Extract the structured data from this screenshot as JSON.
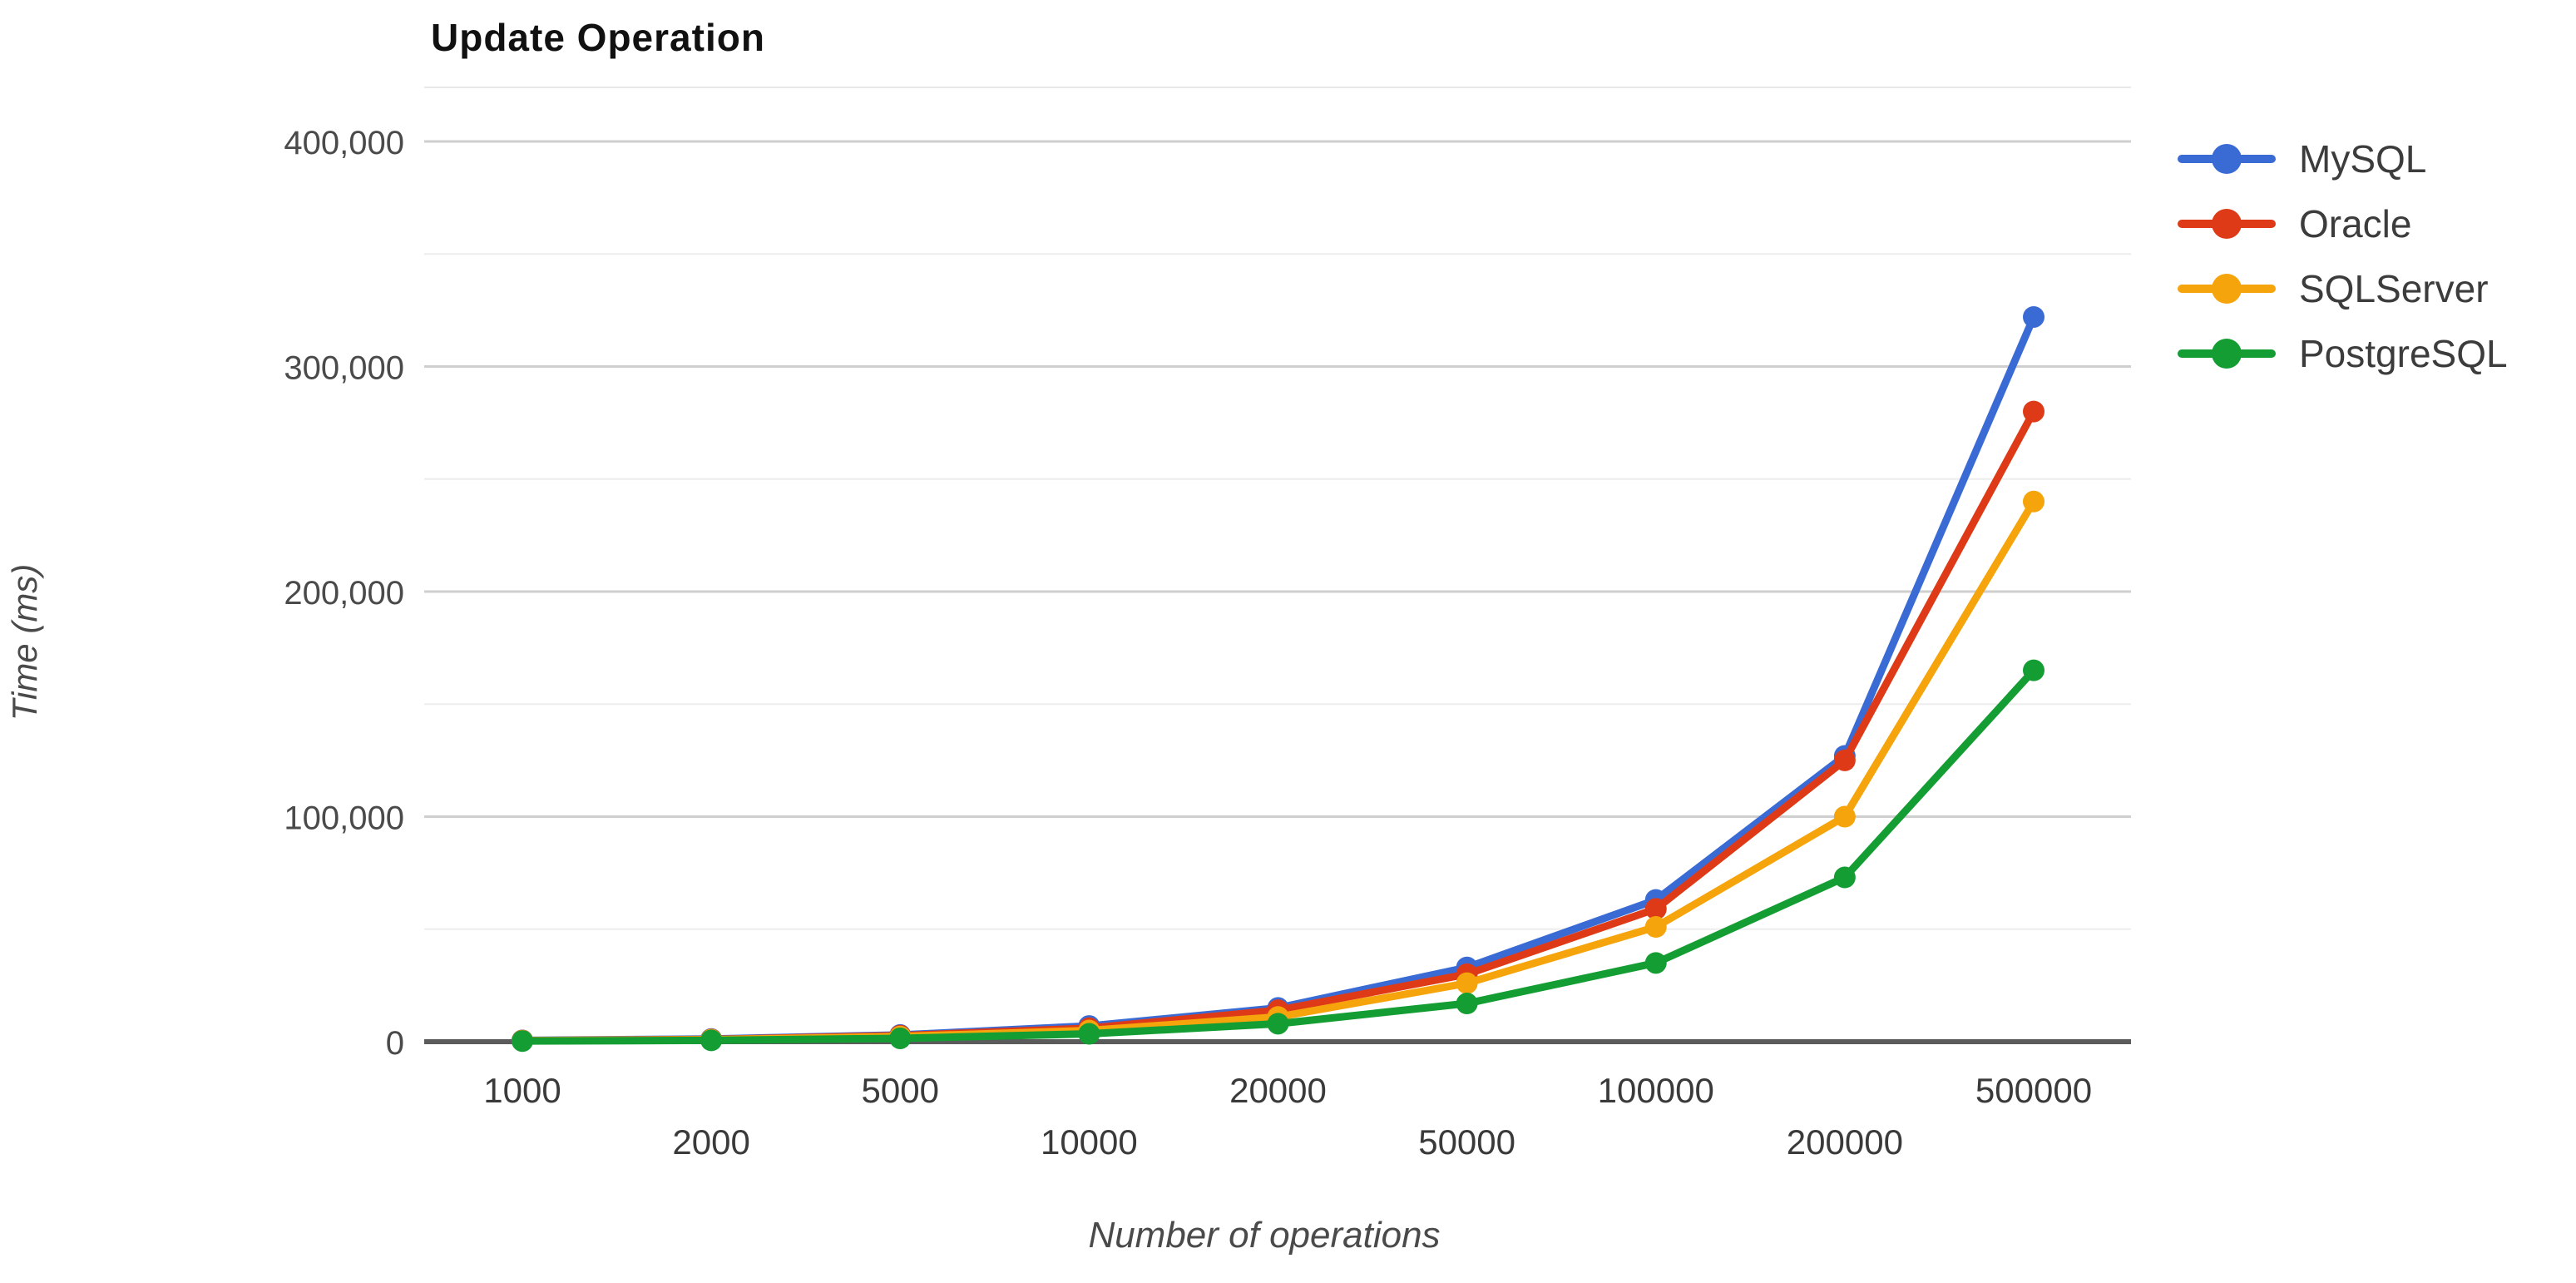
{
  "chart": {
    "title": "Update Operation",
    "xlabel": "Number of operations",
    "ylabel": "Time (ms)"
  },
  "chart_data": {
    "type": "line",
    "title": "Update Operation",
    "xlabel": "Number of operations",
    "ylabel": "Time (ms)",
    "categories": [
      "1000",
      "2000",
      "5000",
      "10000",
      "20000",
      "50000",
      "100000",
      "200000",
      "500000"
    ],
    "series": [
      {
        "name": "MySQL",
        "color": "#3A6BD5",
        "values": [
          600,
          1200,
          3000,
          7000,
          15000,
          33000,
          63000,
          127000,
          322000
        ]
      },
      {
        "name": "Oracle",
        "color": "#DE3A17",
        "values": [
          500,
          1000,
          2700,
          6000,
          14000,
          30000,
          59000,
          125000,
          280000
        ]
      },
      {
        "name": "SQLServer",
        "color": "#F6A40B",
        "values": [
          450,
          900,
          2300,
          5000,
          11000,
          26000,
          51000,
          100000,
          240000
        ]
      },
      {
        "name": "PostgreSQL",
        "color": "#149D33",
        "values": [
          300,
          600,
          1500,
          3500,
          8000,
          17000,
          35000,
          73000,
          165000
        ]
      }
    ],
    "ylim": [
      0,
      400000
    ],
    "y_major_ticks": [
      0,
      100000,
      200000,
      300000,
      400000
    ],
    "y_tick_labels": [
      "0",
      "100,000",
      "200,000",
      "300,000",
      "400,000"
    ],
    "y_minor_ticks": [
      50000,
      150000,
      250000,
      350000
    ],
    "grid": true,
    "legend_position": "right",
    "grid_major_color": "#cfcfcf",
    "grid_minor_color": "#ededed",
    "baseline_color": "#5b5b5b"
  }
}
